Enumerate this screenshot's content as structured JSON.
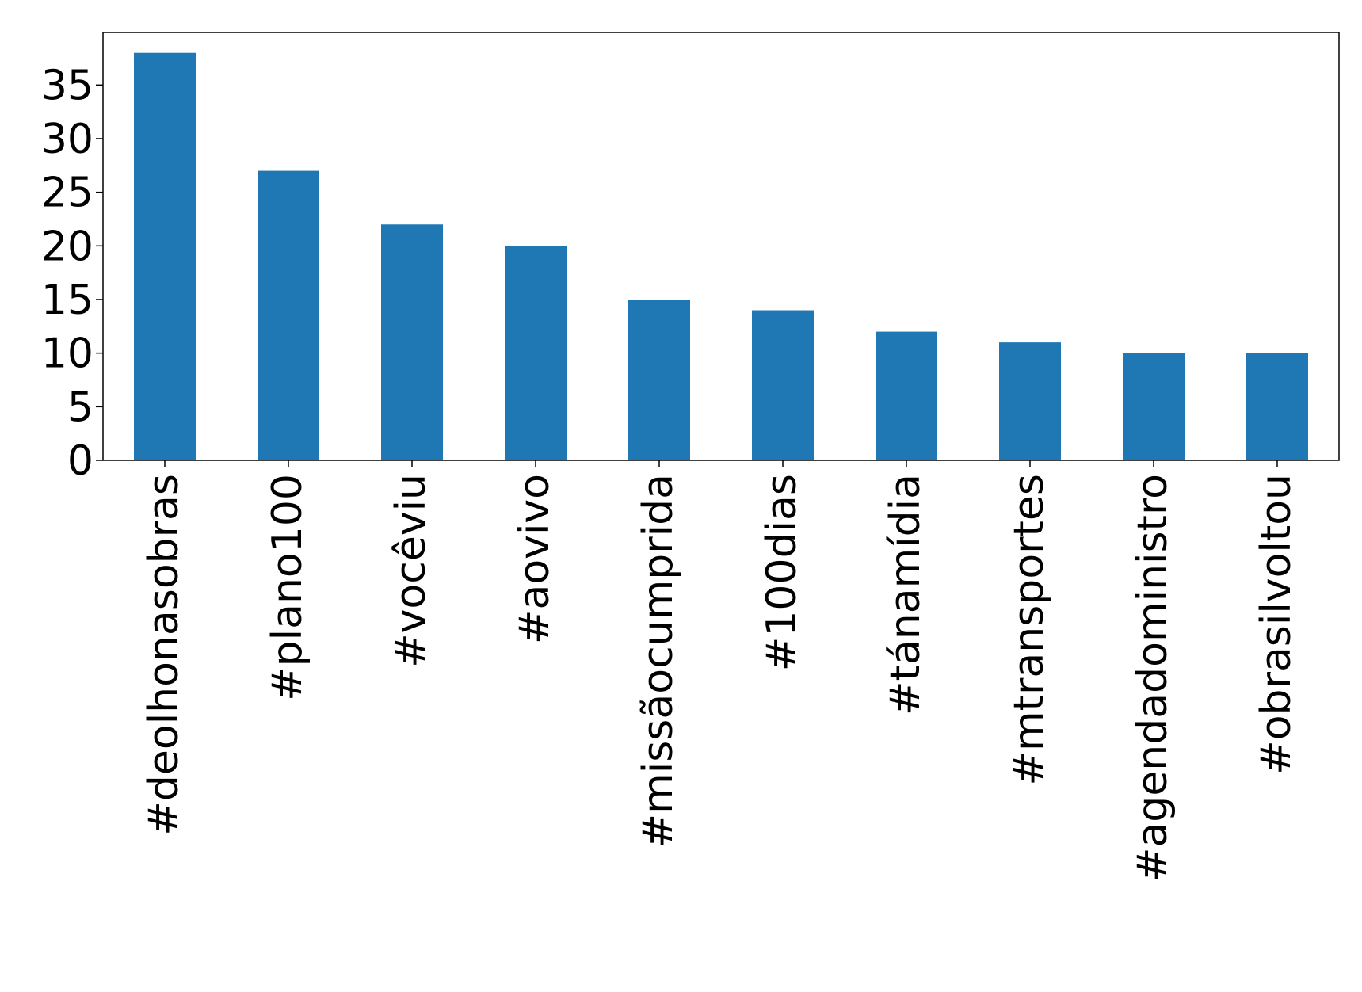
{
  "chart_data": {
    "type": "bar",
    "title": "",
    "xlabel": "",
    "ylabel": "",
    "categories": [
      "#deolhonasobras",
      "#plano100",
      "#vocêviu",
      "#aovivo",
      "#missãocumprida",
      "#100dias",
      "#tánamídia",
      "#mtransportes",
      "#agendadoministro",
      "#obrasilvoltou"
    ],
    "values": [
      38,
      27,
      22,
      20,
      15,
      14,
      12,
      11,
      10,
      10
    ],
    "ylim": [
      0,
      39.9
    ],
    "yticks": [
      0,
      5,
      10,
      15,
      20,
      25,
      30,
      35
    ],
    "grid": false,
    "legend": "none",
    "bar_color": "#1f77b4"
  }
}
